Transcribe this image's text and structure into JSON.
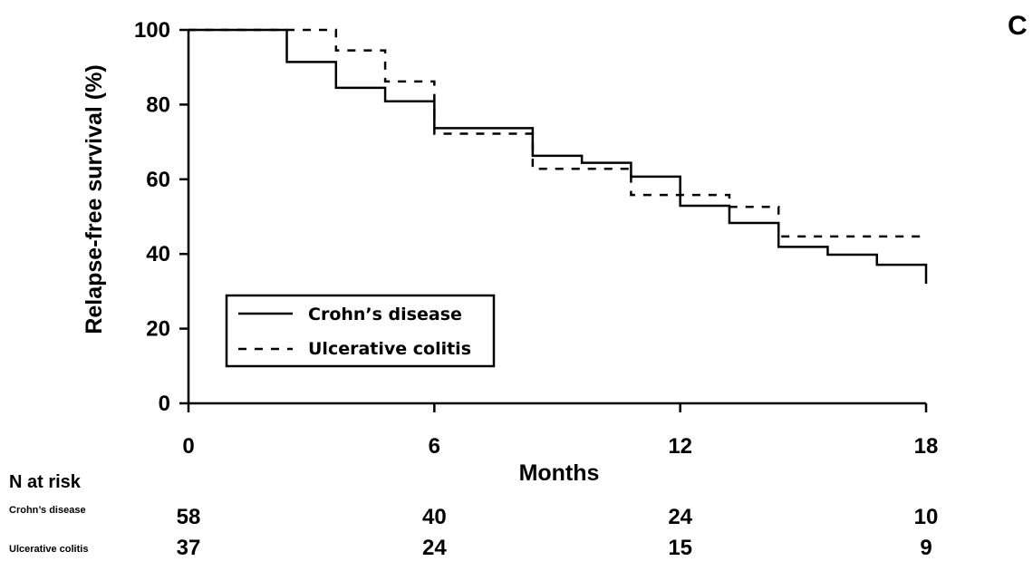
{
  "panel_label": "C",
  "chart_data": {
    "type": "line",
    "subtype": "kaplan-meier",
    "title": "",
    "xlabel": "Months",
    "ylabel": "Relapse-free survival (%)",
    "xlim": [
      0,
      18
    ],
    "ylim": [
      0,
      100
    ],
    "xticks": [
      0,
      6,
      12,
      18
    ],
    "yticks": [
      0,
      20,
      40,
      60,
      80,
      100
    ],
    "grid": false,
    "legend_placement": "lower-left",
    "series": [
      {
        "name": "Crohn’s disease",
        "style": "solid",
        "color": "#000000",
        "x": [
          0,
          2.4,
          3.6,
          4.8,
          6.0,
          8.4,
          9.6,
          10.8,
          12.0,
          13.2,
          14.4,
          15.6,
          16.8,
          18.0,
          18.0
        ],
        "y": [
          100,
          91.4,
          84.5,
          80.9,
          73.7,
          66.3,
          64.4,
          60.7,
          52.9,
          48.3,
          41.9,
          39.8,
          37.1,
          37.1,
          32.0
        ]
      },
      {
        "name": "Ulcerative colitis",
        "style": "dashed",
        "color": "#000000",
        "x": [
          0,
          3.6,
          4.8,
          6.0,
          8.4,
          10.8,
          13.2,
          14.4,
          18.0
        ],
        "y": [
          100,
          94.5,
          86.2,
          72.2,
          62.8,
          55.8,
          52.6,
          44.7,
          44.7
        ]
      }
    ]
  },
  "risk_table": {
    "header": "N at risk",
    "rows": [
      {
        "label": "Crohn’s disease",
        "values": [
          "58",
          "40",
          "24",
          "10"
        ]
      },
      {
        "label": "Ulcerative colitis",
        "values": [
          "37",
          "24",
          "15",
          "9"
        ]
      }
    ]
  }
}
